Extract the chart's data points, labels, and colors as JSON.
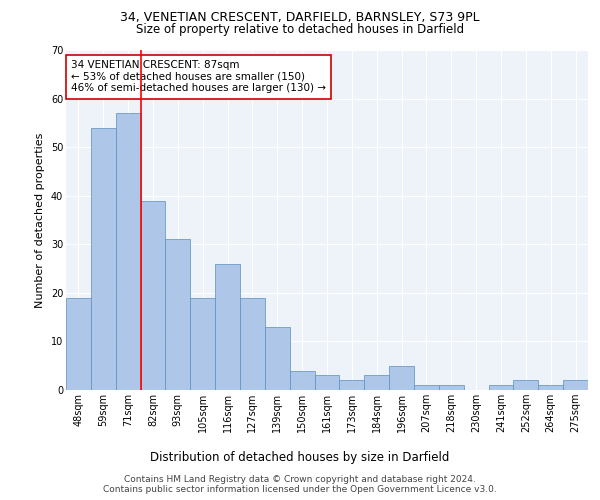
{
  "title_line1": "34, VENETIAN CRESCENT, DARFIELD, BARNSLEY, S73 9PL",
  "title_line2": "Size of property relative to detached houses in Darfield",
  "xlabel": "Distribution of detached houses by size in Darfield",
  "ylabel": "Number of detached properties",
  "categories": [
    "48sqm",
    "59sqm",
    "71sqm",
    "82sqm",
    "93sqm",
    "105sqm",
    "116sqm",
    "127sqm",
    "139sqm",
    "150sqm",
    "161sqm",
    "173sqm",
    "184sqm",
    "196sqm",
    "207sqm",
    "218sqm",
    "230sqm",
    "241sqm",
    "252sqm",
    "264sqm",
    "275sqm"
  ],
  "values": [
    19,
    54,
    57,
    39,
    31,
    19,
    26,
    19,
    13,
    4,
    3,
    2,
    3,
    5,
    1,
    1,
    0,
    1,
    2,
    1,
    2
  ],
  "bar_color": "#aec6e8",
  "bar_edge_color": "#5a8fc0",
  "red_line_x": 2.5,
  "annotation_text": "34 VENETIAN CRESCENT: 87sqm\n← 53% of detached houses are smaller (150)\n46% of semi-detached houses are larger (130) →",
  "annotation_box_color": "#ffffff",
  "annotation_box_edge": "#cc0000",
  "ylim": [
    0,
    70
  ],
  "yticks": [
    0,
    10,
    20,
    30,
    40,
    50,
    60,
    70
  ],
  "background_color": "#eef3fa",
  "grid_color": "#ffffff",
  "footer_text": "Contains HM Land Registry data © Crown copyright and database right 2024.\nContains public sector information licensed under the Open Government Licence v3.0.",
  "title_fontsize": 9,
  "subtitle_fontsize": 8.5,
  "xlabel_fontsize": 8.5,
  "ylabel_fontsize": 8,
  "tick_fontsize": 7,
  "annotation_fontsize": 7.5,
  "footer_fontsize": 6.5
}
